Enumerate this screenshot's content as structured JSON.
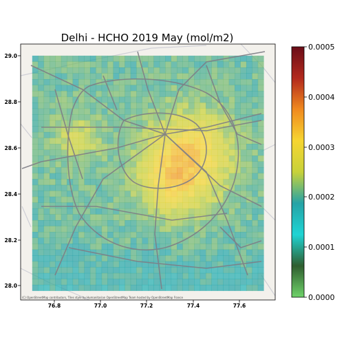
{
  "title": "Delhi - HCHO 2019 May (mol/m2)",
  "attribution": "(C) OpenStreetMap contributors, Tiles style by Humanitarian OpenStreetMap Team hosted by OpenStreetMap France",
  "map": {
    "x_ticks": [
      "76.8",
      "77.0",
      "77.2",
      "77.4",
      "77.6"
    ],
    "y_ticks": [
      "28.0",
      "28.2",
      "28.4",
      "28.6",
      "28.8",
      "29.0"
    ]
  },
  "colorbar": {
    "ticks": [
      "0.0000",
      "0.0001",
      "0.0002",
      "0.0003",
      "0.0004",
      "0.0005"
    ],
    "stops": [
      "#6fd36a",
      "#2f5e2f",
      "#1fd4d4",
      "#25a3a6",
      "#c8d23a",
      "#f6d531",
      "#f08a1f",
      "#b2291d",
      "#6a0d18"
    ]
  },
  "chart_data": {
    "type": "heatmap",
    "title": "Delhi - HCHO 2019 May (mol/m2)",
    "xlim": [
      76.7,
      77.8
    ],
    "ylim": [
      27.95,
      29.05
    ],
    "data_extent": {
      "lon": [
        76.75,
        77.75
      ],
      "lat": [
        27.99,
        29.0
      ]
    },
    "colorbar_range": [
      0.0,
      0.0005
    ],
    "colorbar_ticks": [
      0.0,
      0.0001,
      0.0002,
      0.0003,
      0.0004,
      0.0005
    ],
    "note": "Gridded values approx 0.0002 (west/south) to 0.00033 (central-east Delhi hotspots)"
  }
}
